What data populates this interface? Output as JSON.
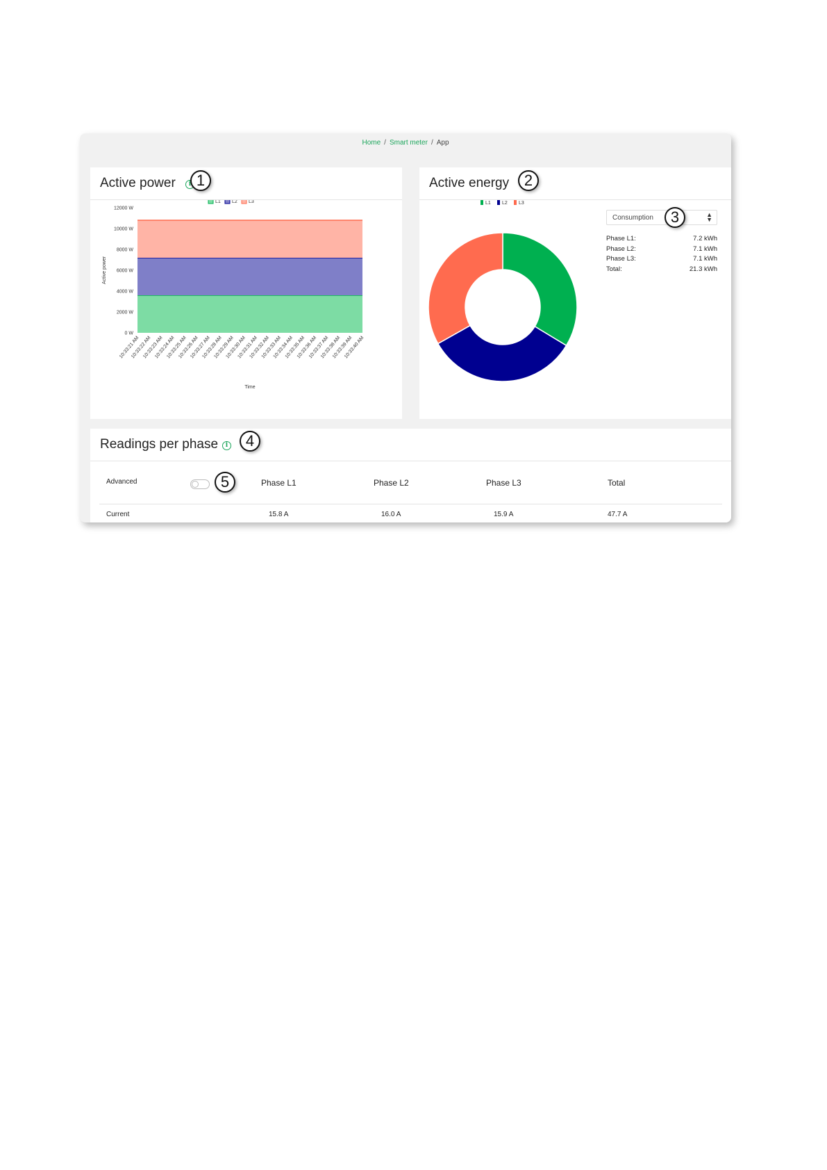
{
  "breadcrumb": {
    "home": "Home",
    "smart_meter": "Smart meter",
    "current": "App",
    "separator": "/"
  },
  "callouts": [
    "1",
    "2",
    "3",
    "4",
    "5"
  ],
  "active_power": {
    "title": "Active power",
    "info_icon": "i",
    "legend": [
      "L1",
      "L2",
      "L3"
    ]
  },
  "active_energy": {
    "title": "Active energy",
    "legend": [
      "L1",
      "L2",
      "L3"
    ],
    "select_value": "Consumption",
    "rows": [
      {
        "label": "Phase L1:",
        "value": "7.2 kWh"
      },
      {
        "label": "Phase L2:",
        "value": "7.1 kWh"
      },
      {
        "label": "Phase L3:",
        "value": "7.1 kWh"
      },
      {
        "label": "Total:",
        "value": "21.3 kWh"
      }
    ]
  },
  "readings": {
    "title": "Readings per phase",
    "info_icon": "i",
    "advanced_label": "Advanced",
    "columns": [
      "Phase L1",
      "Phase L2",
      "Phase L3",
      "Total"
    ],
    "current_label": "Current",
    "current_values": [
      "15.8 A",
      "16.0 A",
      "15.9 A",
      "47.7 A"
    ]
  },
  "colors": {
    "L1": "#00b050",
    "L2": "#000090",
    "L3": "#ff6b4f",
    "L1_fill": "#7ddca4",
    "L2_fill": "#7f7fc8",
    "L3_fill": "#ffb4a6",
    "accent": "#1aa55a"
  },
  "chart_data": [
    {
      "type": "area",
      "stacked": true,
      "x": [
        "10:33:21 AM",
        "10:33:22 AM",
        "10:33:23 AM",
        "10:33:24 AM",
        "10:33:25 AM",
        "10:33:26 AM",
        "10:33:27 AM",
        "10:33:28 AM",
        "10:33:29 AM",
        "10:33:30 AM",
        "10:33:31 AM",
        "10:33:32 AM",
        "10:33:33 AM",
        "10:33:34 AM",
        "10:33:35 AM",
        "10:33:36 AM",
        "10:33:37 AM",
        "10:33:38 AM",
        "10:33:39 AM",
        "10:33:40 AM"
      ],
      "series": [
        {
          "name": "L1",
          "values": [
            3600,
            3600,
            3600,
            3600,
            3600,
            3600,
            3600,
            3600,
            3600,
            3600,
            3600,
            3600,
            3600,
            3600,
            3600,
            3600,
            3600,
            3600,
            3600,
            3600
          ]
        },
        {
          "name": "L2",
          "values": [
            3600,
            3600,
            3600,
            3600,
            3600,
            3600,
            3600,
            3600,
            3600,
            3600,
            3600,
            3600,
            3600,
            3600,
            3600,
            3600,
            3600,
            3600,
            3600,
            3600
          ]
        },
        {
          "name": "L3",
          "values": [
            3600,
            3600,
            3600,
            3600,
            3600,
            3600,
            3600,
            3600,
            3600,
            3600,
            3600,
            3600,
            3600,
            3600,
            3600,
            3600,
            3600,
            3600,
            3600,
            3600
          ]
        }
      ],
      "yticks": [
        "0 W",
        "2000 W",
        "4000 W",
        "6000 W",
        "8000 W",
        "10000 W",
        "12000 W"
      ],
      "ylim": [
        0,
        12000
      ],
      "xlabel": "Time",
      "ylabel": "Active power",
      "legend_position": "top"
    },
    {
      "type": "pie",
      "donut": true,
      "labels": [
        "L1",
        "L2",
        "L3"
      ],
      "values": [
        7.2,
        7.1,
        7.1
      ],
      "legend_position": "top"
    }
  ]
}
